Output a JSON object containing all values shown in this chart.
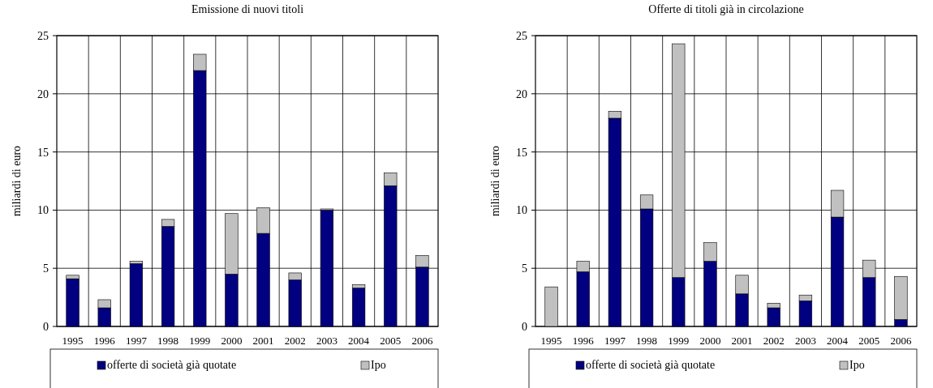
{
  "chart_data": [
    {
      "type": "bar",
      "title": "Emissione di nuovi titoli",
      "ylabel": "miliardi di euro",
      "categories": [
        "1995",
        "1996",
        "1997",
        "1998",
        "1999",
        "2000",
        "2001",
        "2002",
        "2003",
        "2004",
        "2005",
        "2006"
      ],
      "stacked": true,
      "ylim": [
        0,
        25
      ],
      "yticks": [
        0,
        5,
        10,
        15,
        20,
        25
      ],
      "grid": true,
      "legend": "bottom",
      "series": [
        {
          "name": "offerte di società già quotate",
          "color": "#000080",
          "values": [
            4.1,
            1.6,
            5.4,
            8.6,
            22.0,
            4.5,
            8.0,
            4.0,
            10.0,
            3.3,
            12.1,
            5.1
          ]
        },
        {
          "name": "Ipo",
          "color": "#c0c0c0",
          "values": [
            0.3,
            0.7,
            0.2,
            0.6,
            1.4,
            5.2,
            2.2,
            0.6,
            0.1,
            0.3,
            1.1,
            1.0
          ]
        }
      ]
    },
    {
      "type": "bar",
      "title": "Offerte di titoli già in circolazione",
      "ylabel": "miliardi di euro",
      "categories": [
        "1995",
        "1996",
        "1997",
        "1998",
        "1999",
        "2000",
        "2001",
        "2002",
        "2003",
        "2004",
        "2005",
        "2006"
      ],
      "stacked": true,
      "ylim": [
        0,
        25
      ],
      "yticks": [
        0,
        5,
        10,
        15,
        20,
        25
      ],
      "grid": true,
      "legend": "bottom",
      "series": [
        {
          "name": "offerte di società già quotate",
          "color": "#000080",
          "values": [
            0,
            4.7,
            17.9,
            10.1,
            4.2,
            5.6,
            2.8,
            1.6,
            2.2,
            9.4,
            4.2,
            0.6
          ]
        },
        {
          "name": "Ipo",
          "color": "#c0c0c0",
          "values": [
            3.4,
            0.9,
            0.6,
            1.2,
            20.1,
            1.6,
            1.6,
            0.4,
            0.5,
            2.3,
            1.5,
            3.7
          ]
        }
      ]
    }
  ]
}
